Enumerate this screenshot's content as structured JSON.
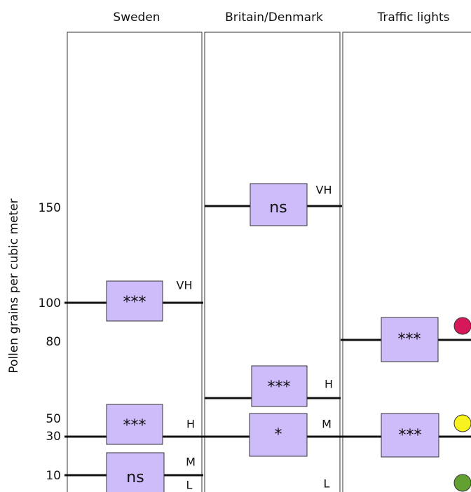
{
  "y_axis": {
    "label": "Pollen grains per cubic meter",
    "ticks": [
      150,
      100,
      80,
      50,
      30,
      10
    ]
  },
  "columns": [
    {
      "title": "Sweden",
      "thresholds": [
        {
          "level": "VH",
          "significance": "***"
        },
        {
          "level": "H",
          "significance": "***"
        },
        {
          "level": "M",
          "significance": "ns"
        },
        {
          "level": "L"
        }
      ]
    },
    {
      "title": "Britain/Denmark",
      "thresholds": [
        {
          "level": "VH",
          "significance": "ns"
        },
        {
          "level": "H",
          "significance": "***"
        },
        {
          "level": "M",
          "significance": "*"
        },
        {
          "level": "L"
        }
      ]
    },
    {
      "title": "Traffic lights",
      "thresholds": [
        {
          "significance": "***"
        },
        {
          "significance": "***"
        }
      ]
    }
  ]
}
